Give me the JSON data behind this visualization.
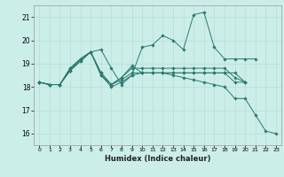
{
  "title": "",
  "xlabel": "Humidex (Indice chaleur)",
  "ylabel": "",
  "background_color": "#cceee8",
  "grid_color": "#b8ddd6",
  "line_color": "#2a7a6e",
  "xlim": [
    -0.5,
    23.5
  ],
  "ylim": [
    15.5,
    21.5
  ],
  "yticks": [
    16,
    17,
    18,
    19,
    20,
    21
  ],
  "xticks": [
    0,
    1,
    2,
    3,
    4,
    5,
    6,
    7,
    8,
    9,
    10,
    11,
    12,
    13,
    14,
    15,
    16,
    17,
    18,
    19,
    20,
    21,
    22,
    23
  ],
  "series": [
    [
      18.2,
      18.1,
      18.1,
      18.8,
      19.2,
      19.5,
      19.6,
      18.8,
      18.1,
      18.5,
      19.7,
      19.8,
      20.2,
      20.0,
      19.6,
      21.1,
      21.2,
      19.7,
      19.2,
      19.2,
      19.2,
      19.2,
      null,
      null
    ],
    [
      18.2,
      18.1,
      18.1,
      18.8,
      19.2,
      19.5,
      18.6,
      18.1,
      18.4,
      18.9,
      18.6,
      18.6,
      18.6,
      18.6,
      18.6,
      18.6,
      18.6,
      18.6,
      18.6,
      18.6,
      18.2,
      null,
      null,
      null
    ],
    [
      18.2,
      18.1,
      18.1,
      18.7,
      19.2,
      19.5,
      18.6,
      18.1,
      18.4,
      18.8,
      18.8,
      18.8,
      18.8,
      18.8,
      18.8,
      18.8,
      18.8,
      18.8,
      18.8,
      18.4,
      18.2,
      null,
      null,
      null
    ],
    [
      18.2,
      18.1,
      18.1,
      18.7,
      19.1,
      19.5,
      18.5,
      18.1,
      18.3,
      18.6,
      18.6,
      18.6,
      18.6,
      18.6,
      18.6,
      18.6,
      18.6,
      18.6,
      18.6,
      18.2,
      18.2,
      null,
      null,
      null
    ],
    [
      18.2,
      18.1,
      18.1,
      18.7,
      19.1,
      19.5,
      18.5,
      18.0,
      18.2,
      18.5,
      18.6,
      18.6,
      18.6,
      18.5,
      18.4,
      18.3,
      18.2,
      18.1,
      18.0,
      17.5,
      17.5,
      16.8,
      16.1,
      16.0
    ]
  ]
}
